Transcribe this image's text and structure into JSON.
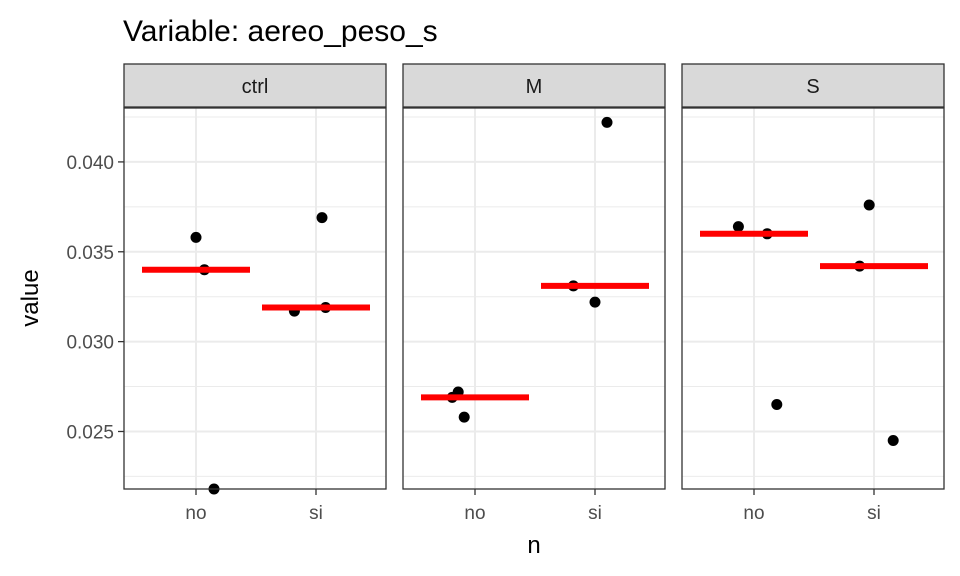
{
  "chart_data": {
    "type": "scatter",
    "title": "Variable: aereo_peso_s",
    "xlabel": "n",
    "ylabel": "value",
    "categories": [
      "no",
      "si"
    ],
    "ylim": [
      0.0218,
      0.043
    ],
    "yticks": [
      0.025,
      0.03,
      0.035,
      0.04
    ],
    "ytick_labels": [
      "0.025",
      "0.030",
      "0.035",
      "0.040"
    ],
    "grid": true,
    "colors": {
      "points": "#000000",
      "mean": "#ff0000",
      "strip": "#d9d9d9",
      "grid": "#ebebeb"
    },
    "facets": [
      {
        "label": "ctrl",
        "groups": [
          {
            "category": "no",
            "jitter": [
              0.0,
              0.07,
              0.15
            ],
            "values": [
              0.0358,
              0.034,
              0.0218
            ],
            "mean": 0.034
          },
          {
            "category": "si",
            "jitter": [
              -0.18,
              0.05,
              0.08
            ],
            "values": [
              0.0317,
              0.0369,
              0.0319
            ],
            "mean": 0.0319
          }
        ]
      },
      {
        "label": "M",
        "groups": [
          {
            "category": "no",
            "jitter": [
              -0.19,
              -0.14,
              -0.09
            ],
            "values": [
              0.0269,
              0.0272,
              0.0258
            ],
            "mean": 0.0269
          },
          {
            "category": "si",
            "jitter": [
              -0.18,
              0.0,
              0.1
            ],
            "values": [
              0.0331,
              0.0322,
              0.0422
            ],
            "mean": 0.0331
          }
        ]
      },
      {
        "label": "S",
        "groups": [
          {
            "category": "no",
            "jitter": [
              -0.13,
              0.11,
              0.19
            ],
            "values": [
              0.0364,
              0.036,
              0.0265
            ],
            "mean": 0.036
          },
          {
            "category": "si",
            "jitter": [
              -0.12,
              -0.04,
              0.16
            ],
            "values": [
              0.0342,
              0.0376,
              0.0245
            ],
            "mean": 0.0342
          }
        ]
      }
    ]
  }
}
